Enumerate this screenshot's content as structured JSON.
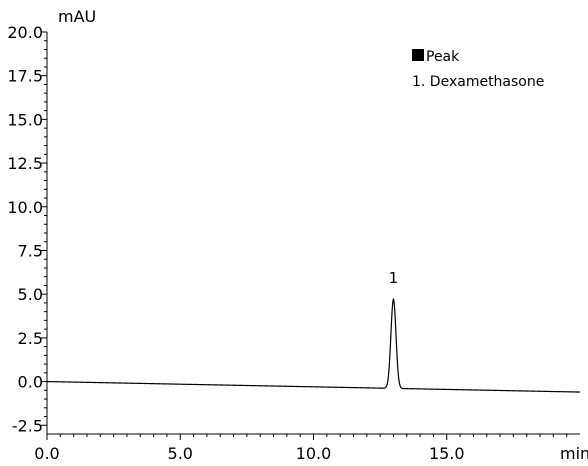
{
  "chart_data": {
    "type": "line",
    "title": "",
    "xlabel": "min",
    "ylabel": "mAU",
    "xlim": [
      0,
      20
    ],
    "ylim": [
      -3,
      20
    ],
    "x_ticks": [
      0,
      5,
      10,
      15
    ],
    "x_tick_labels": [
      "0.0",
      "5.0",
      "10.0",
      "15.0"
    ],
    "y_ticks": [
      -2.5,
      0,
      2.5,
      5,
      7.5,
      10,
      12.5,
      15,
      17.5,
      20
    ],
    "y_tick_labels": [
      "-2.5",
      "0.0",
      "2.5",
      "5.0",
      "7.5",
      "10.0",
      "12.5",
      "15.0",
      "17.5",
      "20.0"
    ],
    "grid": false,
    "baseline": {
      "start": [
        0,
        0.0
      ],
      "end": [
        20,
        -0.6
      ]
    },
    "peaks": [
      {
        "label": "1",
        "retention_time": 13.0,
        "height": 5.1,
        "name": "Dexamethasone"
      }
    ],
    "legend": {
      "position": "top-right",
      "header": "Peak",
      "entries": [
        "1. Dexamethasone"
      ]
    },
    "line_color": "#000000"
  }
}
